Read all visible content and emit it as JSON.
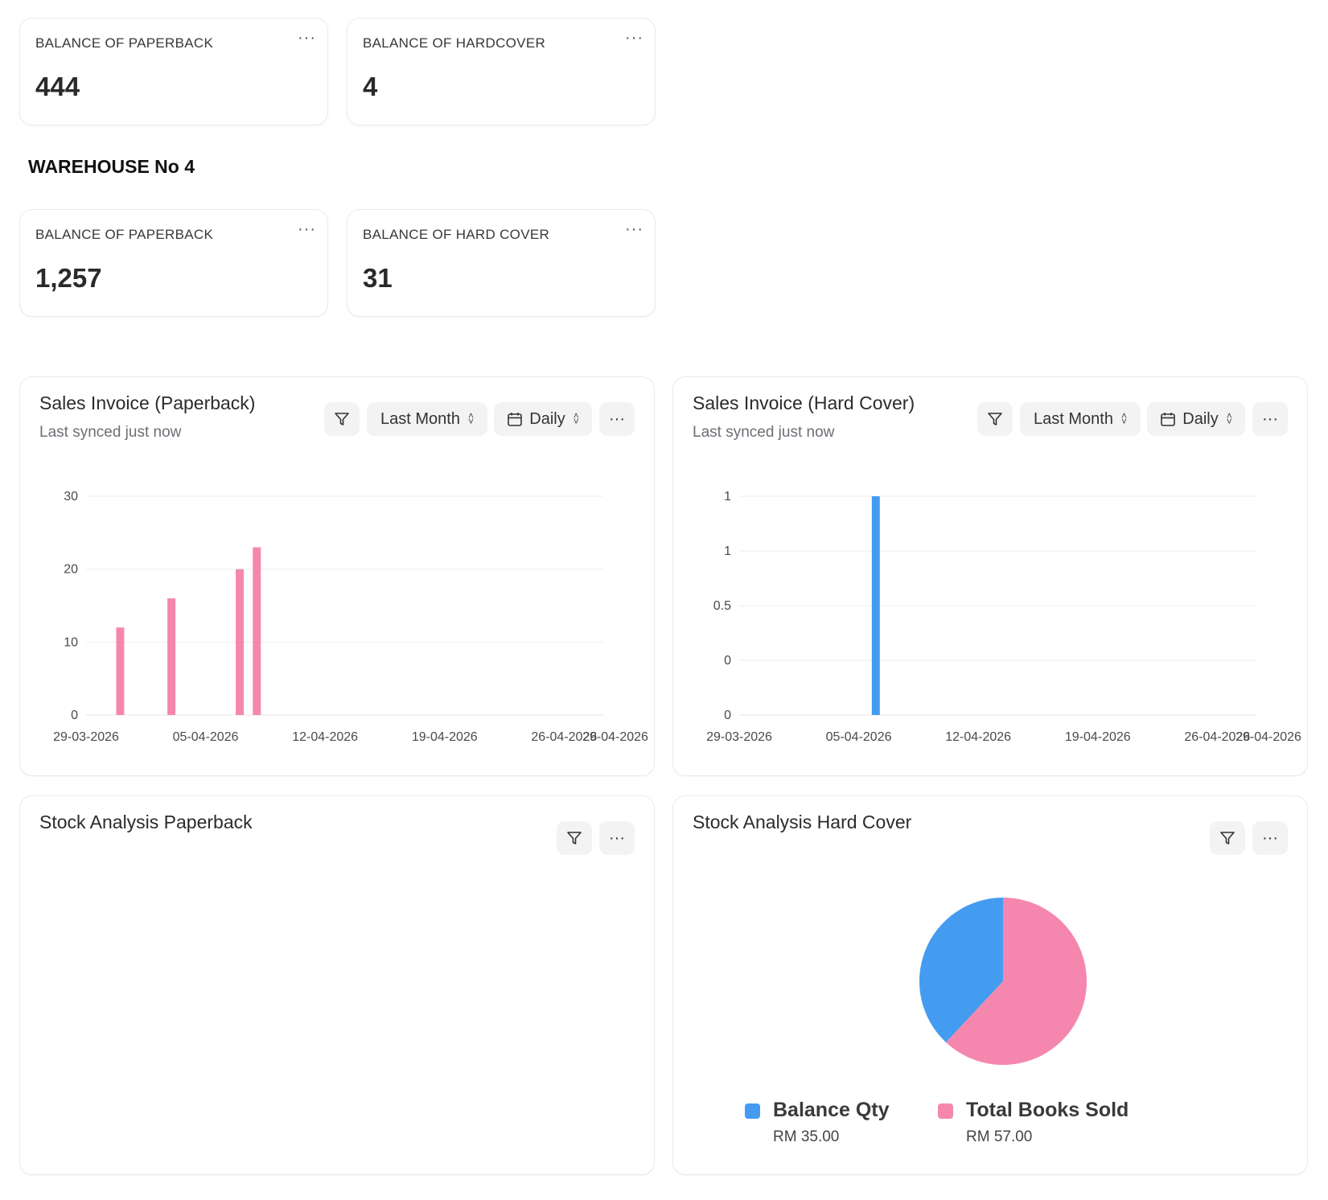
{
  "warehouse_top": {
    "cards": [
      {
        "label": "BALANCE OF PAPERBACK",
        "value": "444"
      },
      {
        "label": "BALANCE OF HARDCOVER",
        "value": "4"
      }
    ]
  },
  "warehouse_4": {
    "title": "WAREHOUSE No 4",
    "cards": [
      {
        "label": "BALANCE OF PAPERBACK",
        "value": "1,257"
      },
      {
        "label": "BALANCE OF HARD COVER",
        "value": "31"
      }
    ]
  },
  "menu_glyph": "···",
  "sales_paperback": {
    "title": "Sales Invoice (Paperback)",
    "subtitle": "Last synced just now",
    "range_label": "Last Month",
    "interval_label": "Daily"
  },
  "sales_hardcover": {
    "title": "Sales Invoice (Hard Cover)",
    "subtitle": "Last synced just now",
    "range_label": "Last Month",
    "interval_label": "Daily"
  },
  "stock_paperback": {
    "title": "Stock Analysis Paperback"
  },
  "stock_hardcover": {
    "title": "Stock Analysis Hard Cover"
  },
  "chart_data": [
    {
      "type": "bar",
      "x_tick_labels": [
        "29-03-2026",
        "05-04-2026",
        "12-04-2026",
        "19-04-2026",
        "26-04-2026",
        "29-04-2026"
      ],
      "y_tick_labels": [
        "30",
        "20",
        "10",
        "0"
      ],
      "ylim": [
        0,
        30
      ],
      "series": [
        {
          "values": [
            {
              "x": "31-03-2026",
              "y": 12
            },
            {
              "x": "03-04-2026",
              "y": 16
            },
            {
              "x": "07-04-2026",
              "y": 20
            },
            {
              "x": "08-04-2026",
              "y": 23
            }
          ],
          "color": "#f587ae"
        }
      ],
      "grid": true
    },
    {
      "type": "bar",
      "x_tick_labels": [
        "29-03-2026",
        "05-04-2026",
        "12-04-2026",
        "19-04-2026",
        "26-04-2026",
        "29-04-2026"
      ],
      "y_tick_labels": [
        "1",
        "1",
        "0.5",
        "0",
        "0"
      ],
      "ylim": [
        0,
        1
      ],
      "series": [
        {
          "values": [
            {
              "x": "06-04-2026",
              "y": 1
            }
          ],
          "color": "#449cf0"
        }
      ],
      "grid": true
    },
    {
      "type": "pie",
      "slices": [
        {
          "label": "Balance Qty",
          "value": 35,
          "display": "RM 35.00",
          "color": "#449cf0"
        },
        {
          "label": "Total Books Sold",
          "value": 57,
          "display": "RM 57.00",
          "color": "#f587ae"
        }
      ],
      "legend": "bottom"
    }
  ]
}
